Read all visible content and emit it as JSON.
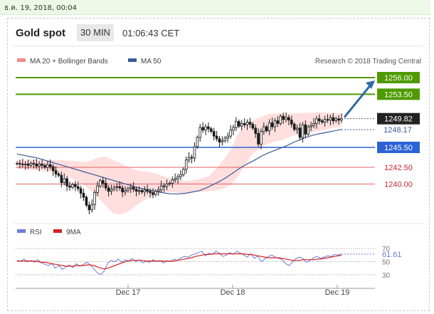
{
  "date_bar": "ธ.ค. 19, 2018, 00:04",
  "header": {
    "symbol": "Gold spot",
    "interval": "30 MIN",
    "clock": "01:06:43 CET"
  },
  "legend": {
    "ma20": "MA 20 + Bollinger Bands",
    "ma50": "MA 50",
    "copyright": "Research © 2018 Trading Central"
  },
  "colors": {
    "green_level": "#4f9a00",
    "blue_level": "#2b63d6",
    "red_level": "#e06060",
    "candle": "#1a1a1a",
    "ma50": "#3b5a9a",
    "bollinger": "#ffd3d3",
    "rsi": "#6a7fd6",
    "ma9": "#d62020",
    "arrow": "#2e6aa8"
  },
  "chart_data": [
    {
      "type": "candlestick",
      "price_range": [
        1235.0,
        1257.5
      ],
      "x_ticks": [
        "Dec 17",
        "Dec 18",
        "Dec 19"
      ],
      "last_price": 1249.82,
      "ma50_value": 1248.17,
      "levels": [
        {
          "value": 1256.0,
          "label": "1256.00",
          "kind": "resistance"
        },
        {
          "value": 1253.5,
          "label": "1253.50",
          "kind": "resistance"
        },
        {
          "value": 1245.5,
          "label": "1245.50",
          "kind": "pivot"
        },
        {
          "value": 1242.5,
          "label": "1242.50",
          "kind": "support"
        },
        {
          "value": 1240.0,
          "label": "1240.00",
          "kind": "support"
        }
      ],
      "close_series": [
        1243.1,
        1243.0,
        1242.9,
        1243.0,
        1242.8,
        1243.1,
        1243.0,
        1242.7,
        1243.0,
        1242.8,
        1242.5,
        1242.9,
        1242.6,
        1242.0,
        1241.5,
        1241.3,
        1240.2,
        1240.8,
        1239.7,
        1239.5,
        1239.9,
        1239.6,
        1239.3,
        1238.6,
        1238.0,
        1236.8,
        1236.1,
        1236.9,
        1238.7,
        1239.7,
        1240.5,
        1240.1,
        1239.4,
        1238.9,
        1239.2,
        1239.5,
        1239.6,
        1239.4,
        1238.8,
        1239.0,
        1239.3,
        1239.5,
        1239.2,
        1238.9,
        1239.0,
        1238.8,
        1239.1,
        1238.9,
        1238.7,
        1238.4,
        1238.9,
        1239.1,
        1239.7,
        1239.6,
        1240.0,
        1240.1,
        1240.6,
        1240.8,
        1241.1,
        1241.4,
        1242.2,
        1243.6,
        1244.0,
        1243.9,
        1245.6,
        1247.0,
        1248.5,
        1248.1,
        1248.6,
        1248.3,
        1247.9,
        1247.2,
        1246.8,
        1246.3,
        1246.5,
        1246.9,
        1247.2,
        1248.1,
        1248.5,
        1249.4,
        1248.7,
        1249.1,
        1248.9,
        1249.3,
        1249.0,
        1248.4,
        1247.6,
        1246.0,
        1247.9,
        1248.6,
        1248.0,
        1249.2,
        1248.6,
        1249.5,
        1249.1,
        1250.2,
        1249.7,
        1250.0,
        1249.6,
        1249.0,
        1248.2,
        1248.4,
        1247.0,
        1248.9,
        1247.5,
        1248.6,
        1248.8,
        1249.1,
        1249.8,
        1249.5,
        1249.3,
        1249.7,
        1249.6,
        1250.0,
        1249.5,
        1249.8,
        1249.6,
        1249.82
      ],
      "ma50_series": [
        1244.5,
        1244.3,
        1244.1,
        1243.9,
        1243.6,
        1243.3,
        1243.0,
        1242.7,
        1242.4,
        1242.1,
        1241.8,
        1241.5,
        1241.2,
        1240.9,
        1240.6,
        1240.3,
        1240.0,
        1239.7,
        1239.4,
        1239.2,
        1239.0,
        1238.8,
        1238.6,
        1238.5,
        1238.5,
        1238.6,
        1238.8,
        1239.0,
        1239.4,
        1239.9,
        1240.4,
        1241.0,
        1241.7,
        1242.4,
        1243.0,
        1243.5,
        1244.1,
        1244.6,
        1245.0,
        1245.4,
        1245.8,
        1246.3,
        1246.7,
        1247.1,
        1247.4,
        1247.6,
        1247.8,
        1248.0,
        1248.2
      ],
      "bollinger_upper": [
        1243.6,
        1243.6,
        1243.7,
        1243.6,
        1243.5,
        1243.6,
        1243.6,
        1243.5,
        1243.4,
        1243.3,
        1243.5,
        1244.0,
        1244.1,
        1243.6,
        1243.1,
        1242.6,
        1242.1,
        1241.9,
        1241.8,
        1241.5,
        1241.1,
        1240.8,
        1240.6,
        1240.4,
        1240.6,
        1240.8,
        1241.2,
        1242.3,
        1243.6,
        1245.2,
        1247.6,
        1249.0,
        1249.6,
        1250.0,
        1250.5,
        1250.6,
        1250.6,
        1250.6,
        1250.6,
        1250.7,
        1250.7,
        1250.8,
        1250.7,
        1250.7,
        1250.6
      ],
      "bollinger_lower": [
        1242.3,
        1242.2,
        1242.1,
        1242.0,
        1241.9,
        1241.7,
        1241.4,
        1241.0,
        1240.5,
        1239.9,
        1239.0,
        1237.9,
        1236.7,
        1235.6,
        1235.4,
        1235.8,
        1236.6,
        1237.4,
        1238.1,
        1238.5,
        1238.8,
        1238.8,
        1238.6,
        1238.6,
        1238.8,
        1238.8,
        1238.9,
        1239.0,
        1239.3,
        1239.8,
        1241.2,
        1243.0,
        1244.6,
        1245.4,
        1246.0,
        1246.4,
        1246.6,
        1247.1,
        1247.4,
        1247.6,
        1247.8,
        1248.0,
        1248.2,
        1248.5,
        1248.6
      ]
    },
    {
      "type": "line",
      "legend": [
        "RSI",
        "9MA"
      ],
      "levels": [
        70,
        50,
        30
      ],
      "ylim": [
        20,
        80
      ],
      "last_value": 61.61,
      "last_label": "61.61",
      "rsi": [
        52,
        51,
        54,
        50,
        52,
        49,
        53,
        48,
        46,
        44,
        47,
        40,
        44,
        38,
        42,
        45,
        41,
        47,
        43,
        46,
        49,
        45,
        39,
        33,
        30,
        36,
        48,
        52,
        50,
        54,
        49,
        53,
        51,
        55,
        50,
        53,
        48,
        51,
        49,
        53,
        50,
        52,
        48,
        51,
        50,
        54,
        52,
        56,
        58,
        57,
        60,
        62,
        64,
        66,
        59,
        63,
        61,
        66,
        63,
        58,
        60,
        64,
        61,
        66,
        63,
        60,
        57,
        62,
        55,
        59,
        50,
        54,
        58,
        60,
        57,
        55,
        53,
        47,
        44,
        50,
        55,
        57,
        54,
        49,
        52,
        56,
        58,
        55,
        57,
        59,
        58,
        61,
        60,
        62
      ],
      "ma9": [
        51,
        51,
        51,
        51,
        51,
        51,
        50,
        49,
        49,
        48,
        47,
        46,
        45,
        44,
        43,
        43,
        43,
        44,
        44,
        44,
        45,
        45,
        44,
        42,
        40,
        39,
        40,
        42,
        44,
        46,
        48,
        50,
        51,
        52,
        52,
        52,
        52,
        51,
        51,
        51,
        51,
        51,
        51,
        51,
        51,
        51,
        52,
        53,
        54,
        55,
        56,
        58,
        59,
        60,
        61,
        61,
        62,
        62,
        62,
        62,
        62,
        62,
        62,
        62,
        62,
        62,
        61,
        61,
        60,
        59,
        58,
        57,
        56,
        56,
        56,
        56,
        55,
        54,
        53,
        52,
        52,
        52,
        53,
        53,
        53,
        53,
        54,
        54,
        55,
        56,
        57,
        58,
        59,
        60
      ]
    }
  ]
}
